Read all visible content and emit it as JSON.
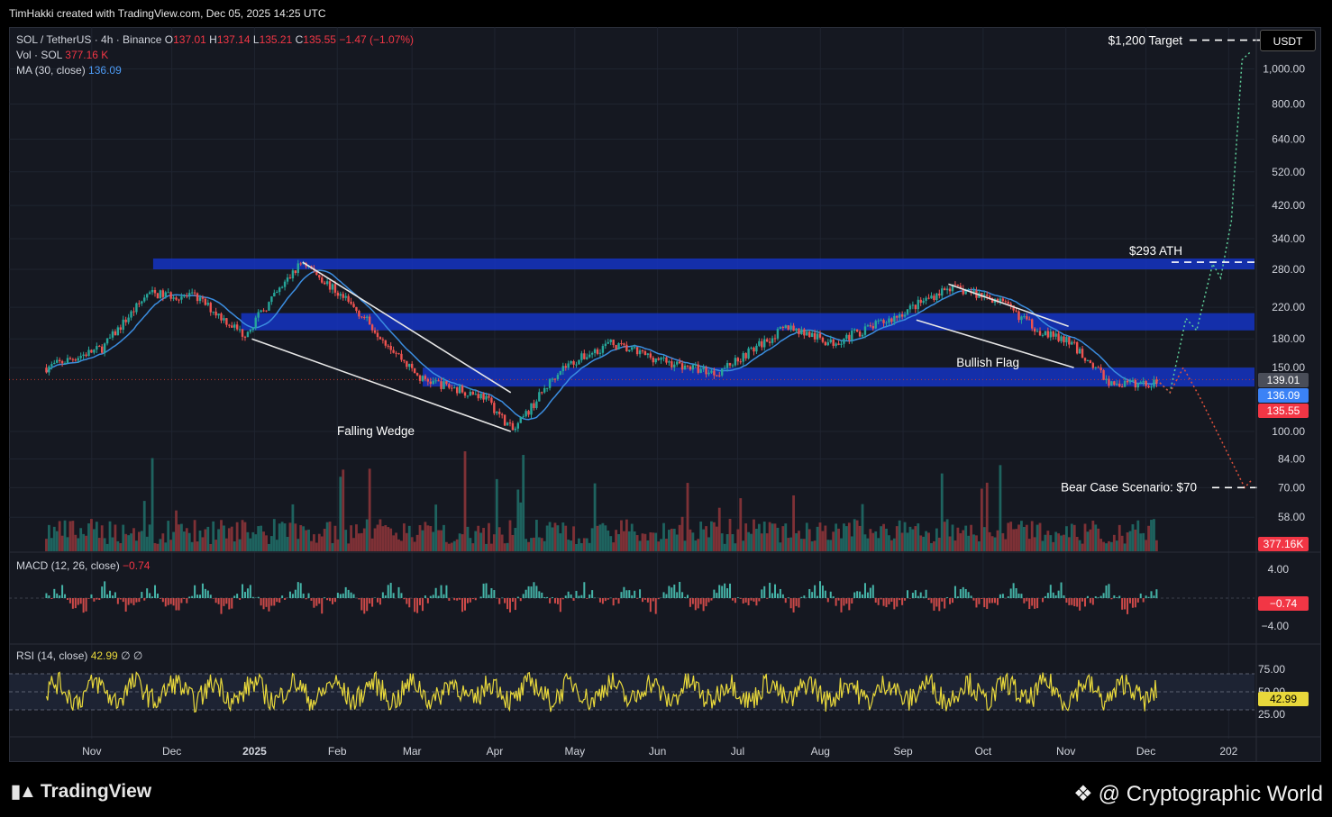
{
  "header": {
    "credit": "TimHakki created with TradingView.com, Dec 05, 2025 14:25 UTC"
  },
  "legend": {
    "symbol": "SOL / TetherUS · 4h · Binance",
    "o_label": "O",
    "o": "137.01",
    "h_label": "H",
    "h": "137.14",
    "l_label": "L",
    "l": "135.21",
    "c_label": "C",
    "c": "135.55",
    "change": "−1.47 (−1.07%)",
    "vol_label": "Vol · SOL",
    "vol": "377.16 K",
    "ma_label": "MA (30, close)",
    "ma": "136.09"
  },
  "macd": {
    "label": "MACD (12, 26, close)",
    "value": "−0.74",
    "ticks": [
      "4.00",
      "−4.00"
    ],
    "badge": "−0.74"
  },
  "rsi": {
    "label": "RSI (14, close)",
    "value": "42.99",
    "extra": "∅ ∅",
    "ticks": [
      "75.00",
      "50.00",
      "25.00"
    ],
    "badge": "42.99"
  },
  "currency": "USDT",
  "price_axis": {
    "ticks": [
      "1,000.00",
      "800.00",
      "640.00",
      "520.00",
      "420.00",
      "340.00",
      "280.00",
      "220.00",
      "180.00",
      "150.00",
      "100.00",
      "84.00",
      "70.00",
      "58.00"
    ],
    "badges": [
      {
        "text": "139.01",
        "color": "#4a4e59"
      },
      {
        "text": "136.09",
        "color": "#3b82f6"
      },
      {
        "text": "135.55",
        "color": "#f23645"
      },
      {
        "text": "377.16K",
        "color": "#f23645"
      }
    ]
  },
  "annotations": {
    "target": "$1,200 Target",
    "ath": "$293 ATH",
    "bullish_flag": "Bullish Flag",
    "falling_wedge": "Falling Wedge",
    "bear_case": "Bear Case Scenario: $70"
  },
  "time_axis": [
    "Nov",
    "Dec",
    "2025",
    "Feb",
    "Mar",
    "Apr",
    "May",
    "Jun",
    "Jul",
    "Aug",
    "Sep",
    "Oct",
    "Nov",
    "Dec",
    "202"
  ],
  "footer": {
    "tv_logo": "TradingView",
    "watermark": "@ Cryptographic World"
  },
  "chart_data": {
    "type": "line",
    "title": "SOL / TetherUS · 4h · Binance",
    "scale": "log",
    "x": [
      "2024-10-15",
      "2024-11-05",
      "2024-11-22",
      "2024-12-10",
      "2024-12-28",
      "2025-01-19",
      "2025-02-10",
      "2025-03-04",
      "2025-03-28",
      "2025-04-08",
      "2025-04-25",
      "2025-05-14",
      "2025-06-05",
      "2025-06-23",
      "2025-07-20",
      "2025-08-05",
      "2025-08-28",
      "2025-09-18",
      "2025-10-06",
      "2025-10-22",
      "2025-11-03",
      "2025-11-18",
      "2025-12-05"
    ],
    "series": [
      {
        "values": [
          150,
          170,
          240,
          235,
          185,
          295,
          210,
          140,
          125,
          100,
          148,
          175,
          155,
          145,
          195,
          175,
          205,
          250,
          232,
          190,
          175,
          135,
          135.55
        ]
      }
    ],
    "ylim": [
      50,
      1250
    ],
    "zones": [
      {
        "low": 280,
        "high": 300
      },
      {
        "low": 190,
        "high": 212
      },
      {
        "low": 133,
        "high": 150
      }
    ],
    "levels": [
      {
        "label": "$1,200 Target",
        "value": 1200
      },
      {
        "label": "$293 ATH",
        "value": 293
      },
      {
        "label": "Bear Case Scenario: $70",
        "value": 70
      }
    ],
    "last": {
      "open": 137.01,
      "high": 137.14,
      "low": 135.21,
      "close": 135.55,
      "ma30": 136.09,
      "volume": "377.16K"
    },
    "macd_last": -0.74,
    "rsi_last": 42.99,
    "grid": true
  }
}
